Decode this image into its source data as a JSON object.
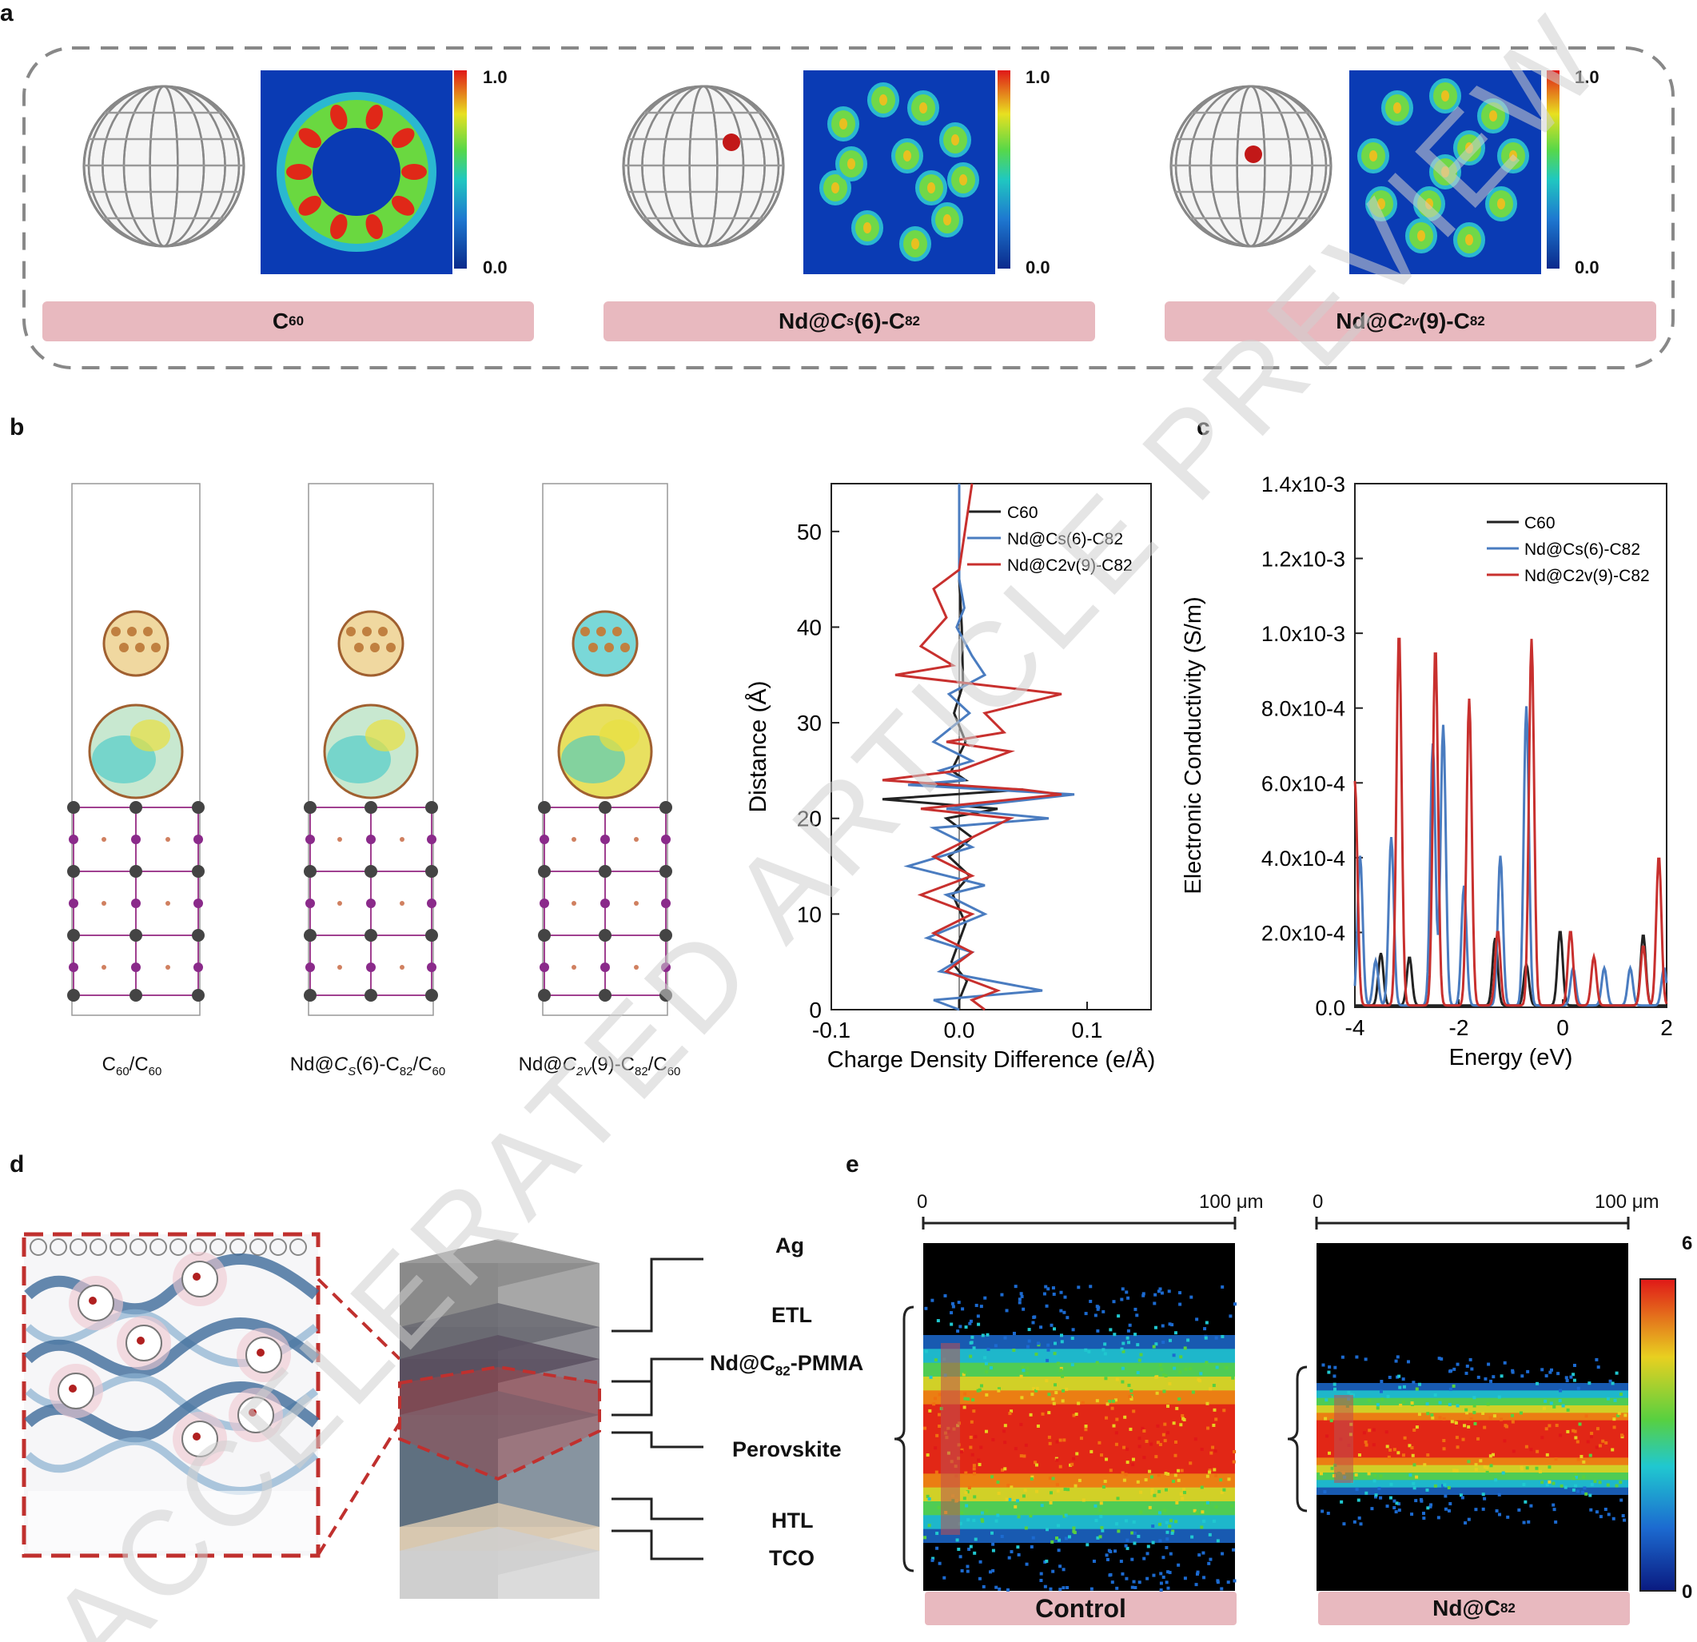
{
  "panels": {
    "a": "a",
    "b": "b",
    "c": "c",
    "d": "d",
    "e": "e"
  },
  "panel_a": {
    "items": [
      {
        "label_main": "C",
        "label_sub": "60",
        "label_tail": ""
      },
      {
        "label_main": "Nd@",
        "label_ital": "C",
        "label_ital_sub": "s",
        "label_mid": "(6)-C",
        "label_sub": "82"
      },
      {
        "label_main": "Nd@",
        "label_ital": "C",
        "label_ital_sub": "2v",
        "label_mid": "(9)-C",
        "label_sub": "82"
      }
    ],
    "colorbar_max": "1.0",
    "colorbar_min": "0.0"
  },
  "panel_b": {
    "captions": [
      {
        "a": "C",
        "a_sub": "60",
        "b": "/C",
        "b_sub": "60"
      },
      {
        "pre": "Nd@",
        "ital": "C",
        "ital_sub": "S",
        "mid": "(6)-C",
        "mid_sub": "82",
        "post": "/C",
        "post_sub": "60"
      },
      {
        "pre": "Nd@",
        "ital": "C",
        "ital_sub": "2V",
        "mid": "(9)-C",
        "mid_sub": "82",
        "post": "/C",
        "post_sub": "60"
      }
    ]
  },
  "chart_data": [
    {
      "type": "line",
      "xlabel": "Charge Density Difference (e/Å)",
      "ylabel": "Distance (Å)",
      "xlim": [
        -0.1,
        0.15
      ],
      "ylim": [
        0,
        55
      ],
      "xticks": [
        "-0.1",
        "0.0",
        "0.1"
      ],
      "yticks": [
        "0",
        "10",
        "20",
        "30",
        "40",
        "50"
      ],
      "legend_position": "top-right",
      "series": [
        {
          "name": "C60",
          "color": "#222222",
          "points": [
            [
              0,
              55
            ],
            [
              0,
              45
            ],
            [
              0.002,
              40
            ],
            [
              0.003,
              34
            ],
            [
              -0.004,
              31
            ],
            [
              0.005,
              28
            ],
            [
              -0.006,
              25
            ],
            [
              0.005,
              24
            ],
            [
              -0.03,
              23.5
            ],
            [
              0.05,
              23
            ],
            [
              -0.06,
              22
            ],
            [
              0.03,
              21
            ],
            [
              -0.01,
              20
            ],
            [
              0.01,
              18
            ],
            [
              -0.008,
              16
            ],
            [
              0.008,
              14
            ],
            [
              -0.005,
              12
            ],
            [
              0.005,
              9
            ],
            [
              -0.006,
              5
            ],
            [
              0.006,
              3
            ],
            [
              0,
              1
            ],
            [
              0,
              0
            ]
          ]
        },
        {
          "name": "Nd@Cs(6)-C82",
          "color": "#4a7cc0",
          "points": [
            [
              0,
              55
            ],
            [
              0,
              45
            ],
            [
              0.004,
              42
            ],
            [
              -0.002,
              40
            ],
            [
              0.01,
              37
            ],
            [
              0.02,
              35
            ],
            [
              -0.008,
              33
            ],
            [
              0.008,
              31
            ],
            [
              -0.02,
              28
            ],
            [
              0.01,
              26
            ],
            [
              -0.015,
              25
            ],
            [
              0.005,
              24
            ],
            [
              -0.04,
              23.5
            ],
            [
              0.09,
              22.5
            ],
            [
              -0.01,
              21
            ],
            [
              0.07,
              20
            ],
            [
              -0.02,
              19
            ],
            [
              0.01,
              17
            ],
            [
              -0.04,
              15
            ],
            [
              0.02,
              13
            ],
            [
              -0.01,
              12
            ],
            [
              0.02,
              10
            ],
            [
              -0.025,
              7.5
            ],
            [
              0.01,
              6
            ],
            [
              -0.015,
              4
            ],
            [
              0.065,
              2
            ],
            [
              -0.02,
              1
            ],
            [
              0,
              0
            ]
          ]
        },
        {
          "name": "Nd@C2v(9)-C82",
          "color": "#c8302e",
          "points": [
            [
              0.01,
              55
            ],
            [
              0,
              46
            ],
            [
              -0.02,
              44
            ],
            [
              -0.01,
              41
            ],
            [
              -0.03,
              38
            ],
            [
              -0.005,
              36
            ],
            [
              -0.05,
              35
            ],
            [
              0.08,
              33
            ],
            [
              0.02,
              31
            ],
            [
              0.035,
              29
            ],
            [
              -0.01,
              28
            ],
            [
              0.04,
              27
            ],
            [
              0.0,
              25
            ],
            [
              -0.06,
              24
            ],
            [
              0.05,
              23
            ],
            [
              0.08,
              22.5
            ],
            [
              -0.03,
              21
            ],
            [
              0.04,
              20
            ],
            [
              0.01,
              18
            ],
            [
              -0.02,
              16
            ],
            [
              0.01,
              14
            ],
            [
              -0.03,
              12
            ],
            [
              0.01,
              10
            ],
            [
              -0.02,
              8
            ],
            [
              0.01,
              6
            ],
            [
              -0.01,
              4
            ],
            [
              0.03,
              2
            ],
            [
              0.01,
              1
            ],
            [
              0.02,
              0
            ]
          ]
        }
      ]
    },
    {
      "type": "line",
      "xlabel": "Energy (eV)",
      "ylabel": "Electronic Conductivity (S/m)",
      "xlim": [
        -4,
        2
      ],
      "ylim": [
        0,
        0.0014
      ],
      "xticks": [
        "-4",
        "-2",
        "0",
        "2"
      ],
      "yticks": [
        "0.0",
        "2.0x10-4",
        "4.0x10-4",
        "6.0x10-4",
        "8.0x10-4",
        "1.0x10-3",
        "1.2x10-3",
        "1.4x10-3"
      ],
      "legend_position": "top-right",
      "series": [
        {
          "name": "C60",
          "color": "#222222",
          "peaks": [
            [
              -3.5,
              0.00014
            ],
            [
              -2.95,
              0.00013
            ],
            [
              -1.3,
              0.00018
            ],
            [
              -0.7,
              0.00011
            ],
            [
              -0.05,
              0.0002
            ],
            [
              1.55,
              0.00019
            ]
          ]
        },
        {
          "name": "Nd@Cs(6)-C82",
          "color": "#4a7cc0",
          "peaks": [
            [
              -3.9,
              0.0004
            ],
            [
              -3.6,
              0.00012
            ],
            [
              -3.3,
              0.00045
            ],
            [
              -2.5,
              0.0007
            ],
            [
              -2.3,
              0.00075
            ],
            [
              -1.9,
              0.00032
            ],
            [
              -1.2,
              0.0004
            ],
            [
              -0.7,
              0.0008
            ],
            [
              0.2,
              0.0001
            ],
            [
              0.8,
              0.0001
            ],
            [
              1.3,
              0.0001
            ],
            [
              1.95,
              0.0001
            ]
          ]
        },
        {
          "name": "Nd@C2v(9)-C82",
          "color": "#c8302e",
          "peaks": [
            [
              -4,
              0.0006
            ],
            [
              -3.15,
              0.001
            ],
            [
              -2.45,
              0.00096
            ],
            [
              -1.8,
              0.00082
            ],
            [
              -1.25,
              0.0002
            ],
            [
              -0.6,
              0.00098
            ],
            [
              0.15,
              0.0002
            ],
            [
              0.6,
              0.00013
            ],
            [
              1.55,
              0.00016
            ],
            [
              1.85,
              0.0004
            ]
          ]
        }
      ]
    }
  ],
  "panel_d": {
    "layers": [
      {
        "main": "Ag",
        "sub": "",
        "tail": ""
      },
      {
        "main": "ETL",
        "sub": "",
        "tail": ""
      },
      {
        "main": "Nd@C",
        "sub": "82",
        "tail": "-PMMA"
      },
      {
        "main": "Perovskite",
        "sub": "",
        "tail": ""
      },
      {
        "main": "HTL",
        "sub": "",
        "tail": ""
      },
      {
        "main": "TCO",
        "sub": "",
        "tail": ""
      }
    ]
  },
  "panel_e": {
    "scale_start": "0",
    "scale_end": "100 μm",
    "maps": [
      {
        "label_main": "Control",
        "label_sub": ""
      },
      {
        "label_main": "Nd@C",
        "label_sub": "82"
      }
    ],
    "colorbar_max": "6",
    "colorbar_min": "0"
  },
  "watermark": "ACCELERATED ARTICLE PREVIEW"
}
